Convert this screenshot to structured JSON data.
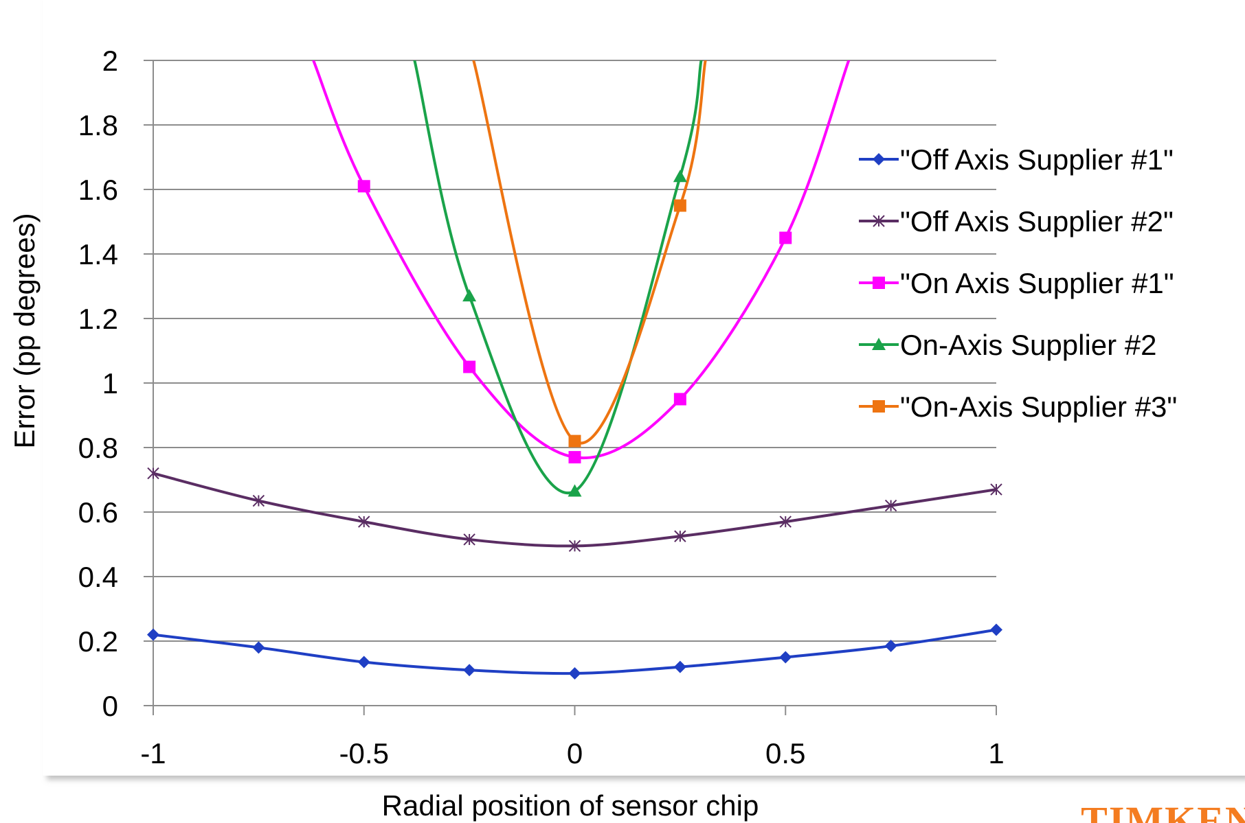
{
  "colors": {
    "background": "#ffffff",
    "panel_shadow": "#bdbdbd",
    "gridline": "#8c8c8c",
    "axis": "#8c8c8c",
    "logo": "#f47c20"
  },
  "logo": {
    "text": "TIMKEN"
  },
  "chart_data": {
    "type": "line",
    "title": "",
    "xlabel": "Radial position of sensor chip",
    "ylabel": "Error (pp degrees)",
    "xlim": [
      -1,
      1
    ],
    "ylim": [
      0,
      2
    ],
    "xticks": [
      -1,
      -0.5,
      0,
      0.5,
      1
    ],
    "xtick_labels": [
      "-1",
      "-0.5",
      "0",
      "0.5",
      "1"
    ],
    "yticks": [
      0,
      0.2,
      0.4,
      0.6,
      0.8,
      1,
      1.2,
      1.4,
      1.6,
      1.8,
      2
    ],
    "ytick_labels": [
      "0",
      "0.2",
      "0.4",
      "0.6",
      "0.8",
      "1",
      "1.2",
      "1.4",
      "1.6",
      "1.8",
      "2"
    ],
    "grid": "horizontal",
    "legend_position": "right",
    "series": [
      {
        "name": "\"Off Axis Supplier #1\"",
        "color": "#1f3fc4",
        "marker": "diamond",
        "x": [
          -1,
          -0.75,
          -0.5,
          -0.25,
          0,
          0.25,
          0.5,
          0.75,
          1
        ],
        "y": [
          0.22,
          0.18,
          0.135,
          0.11,
          0.1,
          0.12,
          0.15,
          0.185,
          0.235
        ]
      },
      {
        "name": "\"Off Axis Supplier #2\"",
        "color": "#5a2d63",
        "marker": "asterisk",
        "x": [
          -1,
          -0.75,
          -0.5,
          -0.25,
          0,
          0.25,
          0.5,
          0.75,
          1
        ],
        "y": [
          0.72,
          0.635,
          0.57,
          0.515,
          0.495,
          0.525,
          0.57,
          0.62,
          0.67
        ]
      },
      {
        "name": "\"On Axis Supplier #1\"",
        "color": "#ff00ff",
        "marker": "square",
        "x": [
          -0.62,
          -0.5,
          -0.25,
          0,
          0.25,
          0.5,
          0.65
        ],
        "y": [
          2.0,
          1.61,
          1.05,
          0.77,
          0.95,
          1.45,
          2.0
        ],
        "marker_mask": [
          false,
          true,
          true,
          true,
          true,
          true,
          false
        ]
      },
      {
        "name": "On-Axis Supplier #2",
        "color": "#1aa34a",
        "marker": "triangle",
        "x": [
          -0.38,
          -0.25,
          0,
          0.25,
          0.3
        ],
        "y": [
          2.0,
          1.27,
          0.665,
          1.64,
          2.0
        ],
        "marker_mask": [
          false,
          true,
          true,
          true,
          false
        ]
      },
      {
        "name": "\"On-Axis Supplier #3\"",
        "color": "#ee7411",
        "marker": "square",
        "x": [
          -0.24,
          0,
          0.25,
          0.31
        ],
        "y": [
          2.0,
          0.82,
          1.55,
          2.0
        ],
        "marker_mask": [
          false,
          true,
          true,
          false
        ]
      }
    ]
  }
}
